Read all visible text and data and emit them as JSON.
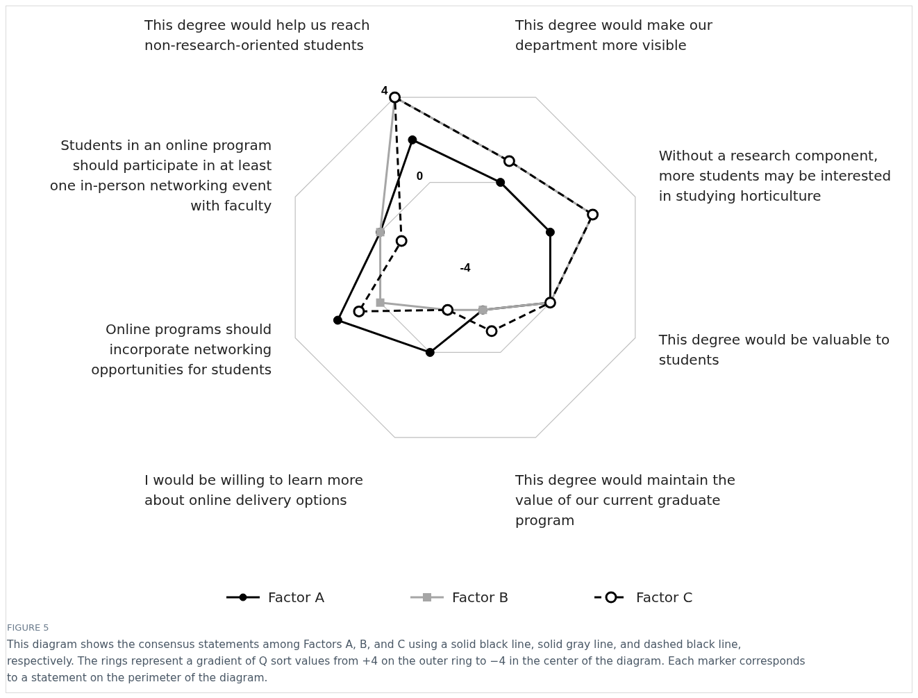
{
  "chart_data": {
    "type": "radar",
    "categories": [
      "This degree would help us reach non-research-oriented students",
      "This degree would make our department more visible",
      "Without a research component, more students may be interested in studying horticulture",
      "This degree would be valuable to students",
      "This degree would maintain the value of our current graduate program",
      "I would be willing to learn more about online delivery options",
      "Online programs should incorporate networking opportunities for students",
      "Students in an online program should participate in at least one in-person networking event with faculty"
    ],
    "series": [
      {
        "name": "Factor A",
        "color": "#000000",
        "values": [
          2,
          0,
          0,
          0,
          -2,
          0,
          2,
          0
        ],
        "marker": "circle",
        "line_style": "solid"
      },
      {
        "name": "Factor B",
        "color": "#a6a6a6",
        "values": [
          4,
          1,
          2,
          0,
          -2,
          -2,
          0,
          0
        ],
        "marker": "square",
        "line_style": "solid"
      },
      {
        "name": "Factor C",
        "color": "#000000",
        "values": [
          4,
          1,
          2,
          0,
          -1,
          -2,
          1,
          -1
        ],
        "marker": "circle",
        "line_style": "dashed"
      }
    ],
    "ylim": [
      -4,
      4
    ],
    "yticks": [
      -4,
      0,
      4
    ],
    "grid": true,
    "legend": "bottom",
    "annotations": [
      "FIGURE 5",
      "This diagram shows the consensus statements among Factors A, B, and C using a solid black line, solid gray line, and dashed black line, respectively. The rings represent a gradient of Q sort values from +4 on the outer ring to −4 in the center of the diagram. Each marker corresponds to a statement on the perimeter of the diagram."
    ]
  }
}
